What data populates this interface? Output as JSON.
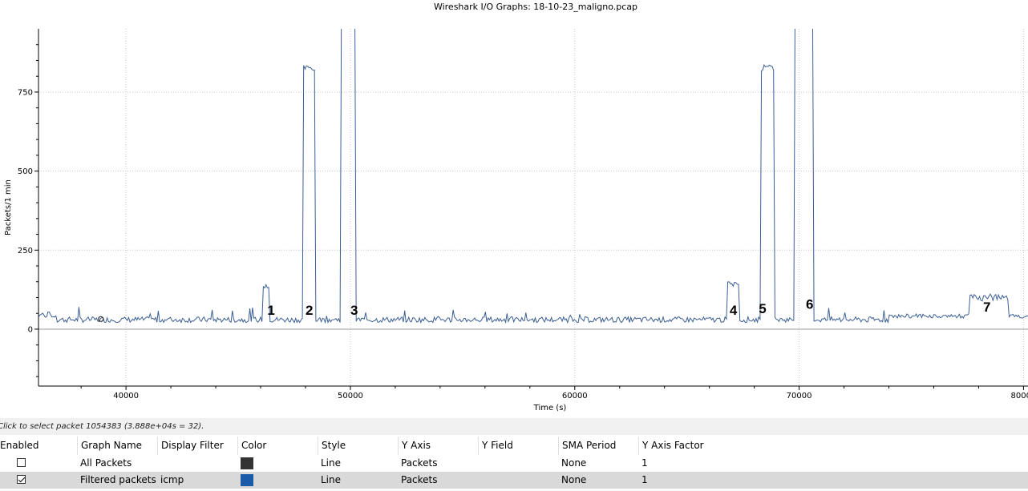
{
  "window": {
    "title": "Wireshark I/O Graphs: 18-10-23_maligno.pcap"
  },
  "status": {
    "text": "Click to select packet 1054383 (3.888e+04s = 32)."
  },
  "table": {
    "headers": [
      "Enabled",
      "Graph Name",
      "Display Filter",
      "Color",
      "Style",
      "Y Axis",
      "Y Field",
      "SMA Period",
      "Y Axis Factor"
    ],
    "rows": [
      {
        "enabled": false,
        "name": "All Packets",
        "filter": "",
        "color": "#333333",
        "style": "Line",
        "y_axis": "Packets",
        "y_field": "",
        "sma": "None",
        "factor": "1"
      },
      {
        "enabled": true,
        "name": "Filtered packets",
        "filter": "icmp",
        "color": "#1a5ba8",
        "style": "Line",
        "y_axis": "Packets",
        "y_field": "",
        "sma": "None",
        "factor": "1"
      }
    ]
  },
  "chart_data": {
    "type": "line",
    "title": "",
    "xlabel": "Time (s)",
    "ylabel": "Packets/1 min",
    "xlim": [
      36100,
      80200
    ],
    "ylim": [
      -180,
      950
    ],
    "x_ticks": [
      "40000",
      "50000",
      "60000",
      "70000",
      "80000"
    ],
    "x_tick_values": [
      40000,
      50000,
      60000,
      70000,
      80000
    ],
    "y_ticks": [
      "0",
      "250",
      "500",
      "750"
    ],
    "y_tick_values": [
      0,
      250,
      500,
      750
    ],
    "grid": true,
    "series_color": "#3c5f94",
    "baseline": 30,
    "segments": [
      {
        "x": [
          46100,
          46400
        ],
        "value": 140
      },
      {
        "x": [
          47900,
          48400
        ],
        "value": 825
      },
      {
        "x": [
          49600,
          50200
        ],
        "value": 2000
      },
      {
        "x": [
          66800,
          67300
        ],
        "value": 140
      },
      {
        "x": [
          68300,
          68900
        ],
        "value": 825
      },
      {
        "x": [
          69800,
          70600
        ],
        "value": 2000
      },
      {
        "x": [
          77600,
          79300
        ],
        "value": 100
      }
    ],
    "selected_point": {
      "x": 38880,
      "y": 32
    },
    "annotations": [
      {
        "label": "1",
        "x": 46300,
        "y": 45
      },
      {
        "label": "2",
        "x": 48000,
        "y": 45
      },
      {
        "label": "3",
        "x": 50000,
        "y": 45
      },
      {
        "label": "4",
        "x": 66900,
        "y": 45
      },
      {
        "label": "5",
        "x": 68200,
        "y": 50
      },
      {
        "label": "6",
        "x": 70300,
        "y": 65
      },
      {
        "label": "7",
        "x": 78200,
        "y": 55
      }
    ]
  }
}
